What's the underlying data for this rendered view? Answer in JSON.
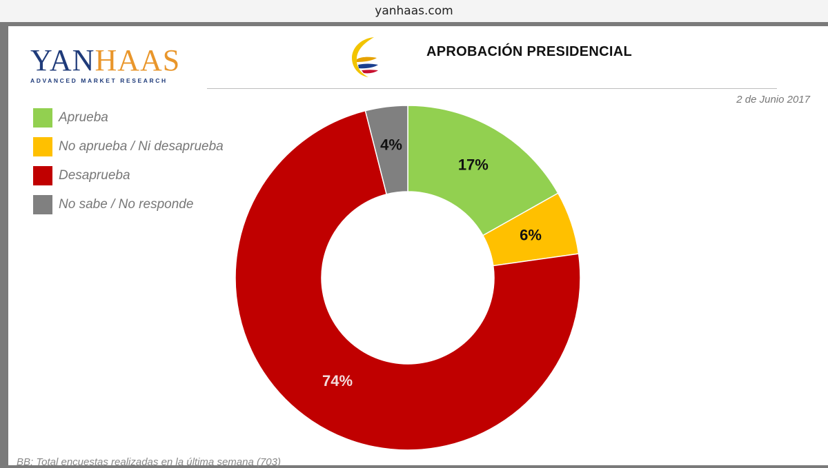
{
  "browser": {
    "url_text": "yanhaas.com"
  },
  "logo": {
    "word_part1": "YAN",
    "word_part2": "HAAS",
    "subtitle": "ADVANCED MARKET RESEARCH"
  },
  "header": {
    "title": "APROBACIÓN PRESIDENCIAL",
    "date": "2 de Junio 2017"
  },
  "footnote": "BB: Total encuestas realizadas en la última semana (703)",
  "colors": {
    "green": "#92d050",
    "yellow": "#ffc000",
    "red": "#c00000",
    "gray": "#808080"
  },
  "chart_data": {
    "type": "pie",
    "variant": "donut",
    "title": "APROBACIÓN PRESIDENCIAL",
    "categories": [
      "Aprueba",
      "No aprueba / Ni desaprueba",
      "Desaprueba",
      "No sabe /  No responde"
    ],
    "values": [
      17,
      6,
      74,
      4
    ],
    "labels": [
      "17%",
      "6%",
      "74%",
      "4%"
    ],
    "colors": [
      "#92d050",
      "#ffc000",
      "#c00000",
      "#808080"
    ],
    "label_colors": [
      "#111111",
      "#111111",
      "#f2dcdc",
      "#111111"
    ],
    "legend_position": "top-left"
  }
}
